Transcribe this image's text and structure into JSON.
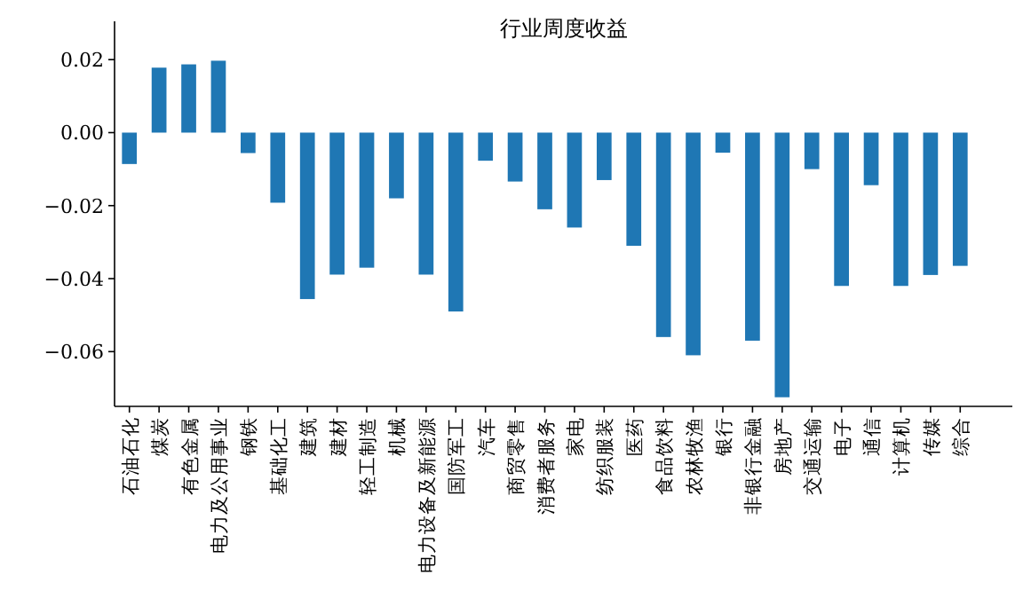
{
  "chart_data": {
    "type": "bar",
    "title": "行业周度收益",
    "categories": [
      "石油石化",
      "煤炭",
      "有色金属",
      "电力及公用事业",
      "钢铁",
      "基础化工",
      "建筑",
      "建材",
      "轻工制造",
      "机械",
      "电力设备及新能源",
      "国防军工",
      "汽车",
      "商贸零售",
      "消费者服务",
      "家电",
      "纺织服装",
      "医药",
      "食品饮料",
      "农林牧渔",
      "银行",
      "非银行金融",
      "房地产",
      "交通运输",
      "电子",
      "通信",
      "计算机",
      "传媒",
      "综合"
    ],
    "values": [
      -0.0086,
      0.0178,
      0.0187,
      0.0197,
      -0.0056,
      -0.0192,
      -0.0456,
      -0.0389,
      -0.037,
      -0.018,
      -0.0389,
      -0.049,
      -0.0077,
      -0.0134,
      -0.021,
      -0.026,
      -0.013,
      -0.031,
      -0.056,
      -0.061,
      -0.0055,
      -0.057,
      -0.0725,
      -0.01,
      -0.042,
      -0.0144,
      -0.042,
      -0.039,
      -0.0365
    ],
    "color": "#1f77b4",
    "ylim": [
      -0.075,
      0.0305
    ],
    "yticks": [
      {
        "value": -0.06,
        "label": "−0.06"
      },
      {
        "value": -0.04,
        "label": "−0.04"
      },
      {
        "value": -0.02,
        "label": "−0.02"
      },
      {
        "value": 0,
        "label": "0.00"
      },
      {
        "value": 0.02,
        "label": "0.02"
      }
    ],
    "grid": false
  }
}
